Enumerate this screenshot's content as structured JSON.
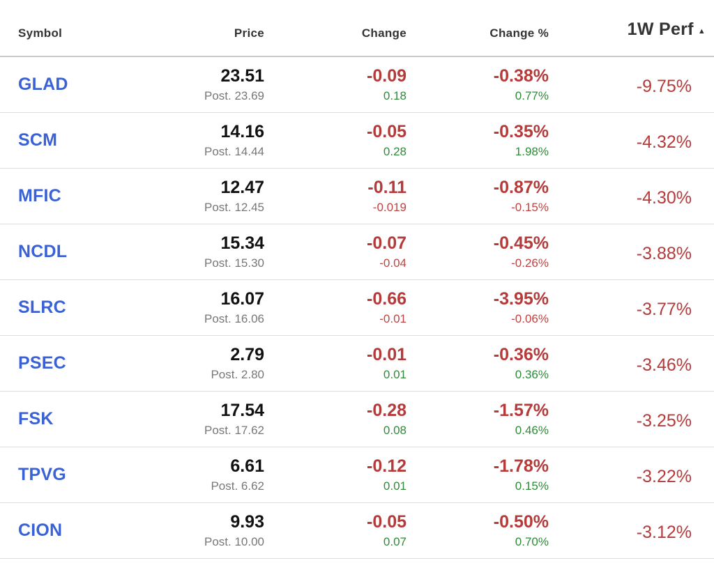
{
  "header": {
    "symbol": "Symbol",
    "price": "Price",
    "change": "Change",
    "change_pct": "Change %",
    "perf": "1W Perf",
    "sort_icon": "sort-ascending-icon"
  },
  "colors": {
    "link": "#3a62d4",
    "negative": "#b53a3a",
    "positive": "#3a8a3a",
    "muted": "#777777"
  },
  "rows": [
    {
      "symbol": "GLAD",
      "price": "23.51",
      "post": "Post. 23.69",
      "change": "-0.09",
      "change_post": "0.18",
      "change_pct": "-0.38%",
      "change_pct_post": "0.77%",
      "perf": "-9.75%",
      "change_post_sign": "pos",
      "change_pct_post_sign": "pos"
    },
    {
      "symbol": "SCM",
      "price": "14.16",
      "post": "Post. 14.44",
      "change": "-0.05",
      "change_post": "0.28",
      "change_pct": "-0.35%",
      "change_pct_post": "1.98%",
      "perf": "-4.32%",
      "change_post_sign": "pos",
      "change_pct_post_sign": "pos"
    },
    {
      "symbol": "MFIC",
      "price": "12.47",
      "post": "Post. 12.45",
      "change": "-0.11",
      "change_post": "-0.019",
      "change_pct": "-0.87%",
      "change_pct_post": "-0.15%",
      "perf": "-4.30%",
      "change_post_sign": "neg",
      "change_pct_post_sign": "neg"
    },
    {
      "symbol": "NCDL",
      "price": "15.34",
      "post": "Post. 15.30",
      "change": "-0.07",
      "change_post": "-0.04",
      "change_pct": "-0.45%",
      "change_pct_post": "-0.26%",
      "perf": "-3.88%",
      "change_post_sign": "neg",
      "change_pct_post_sign": "neg"
    },
    {
      "symbol": "SLRC",
      "price": "16.07",
      "post": "Post. 16.06",
      "change": "-0.66",
      "change_post": "-0.01",
      "change_pct": "-3.95%",
      "change_pct_post": "-0.06%",
      "perf": "-3.77%",
      "change_post_sign": "neg",
      "change_pct_post_sign": "neg"
    },
    {
      "symbol": "PSEC",
      "price": "2.79",
      "post": "Post. 2.80",
      "change": "-0.01",
      "change_post": "0.01",
      "change_pct": "-0.36%",
      "change_pct_post": "0.36%",
      "perf": "-3.46%",
      "change_post_sign": "pos",
      "change_pct_post_sign": "pos"
    },
    {
      "symbol": "FSK",
      "price": "17.54",
      "post": "Post. 17.62",
      "change": "-0.28",
      "change_post": "0.08",
      "change_pct": "-1.57%",
      "change_pct_post": "0.46%",
      "perf": "-3.25%",
      "change_post_sign": "pos",
      "change_pct_post_sign": "pos"
    },
    {
      "symbol": "TPVG",
      "price": "6.61",
      "post": "Post. 6.62",
      "change": "-0.12",
      "change_post": "0.01",
      "change_pct": "-1.78%",
      "change_pct_post": "0.15%",
      "perf": "-3.22%",
      "change_post_sign": "pos",
      "change_pct_post_sign": "pos"
    },
    {
      "symbol": "CION",
      "price": "9.93",
      "post": "Post. 10.00",
      "change": "-0.05",
      "change_post": "0.07",
      "change_pct": "-0.50%",
      "change_pct_post": "0.70%",
      "perf": "-3.12%",
      "change_post_sign": "pos",
      "change_pct_post_sign": "pos"
    }
  ]
}
